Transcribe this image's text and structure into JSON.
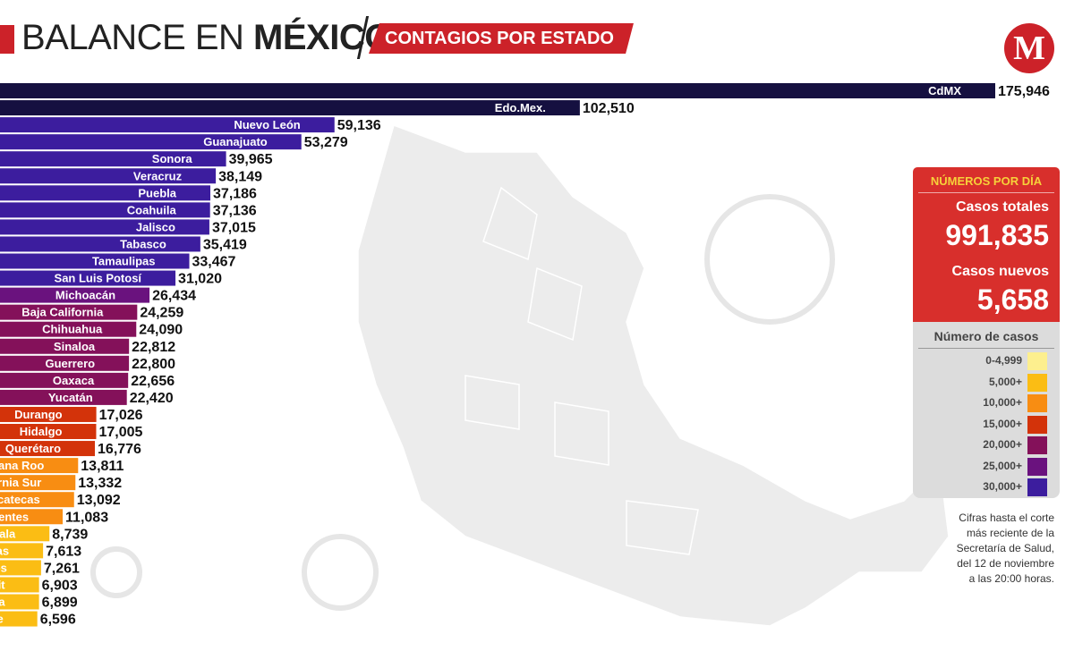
{
  "header": {
    "title_light": "BALANCE EN ",
    "title_bold": "MÉXICO",
    "subtitle": "CONTAGIOS POR ESTADO",
    "logo_letter": "M",
    "brand_color": "#cc2229"
  },
  "chart_data": {
    "type": "bar",
    "orientation": "horizontal",
    "categories": [
      "CdMX",
      "Edo.Mex.",
      "Nuevo León",
      "Guanajuato",
      "Sonora",
      "Veracruz",
      "Puebla",
      "Coahuila",
      "Jalisco",
      "Tabasco",
      "Tamaulipas",
      "San Luis Potosí",
      "Michoacán",
      "Baja California",
      "Chihuahua",
      "Sinaloa",
      "Guerrero",
      "Oaxaca",
      "Yucatán",
      "Durango",
      "Hidalgo",
      "Querétaro",
      "Quintana Roo",
      "Baja California Sur",
      "Zacatecas",
      "Aguascalientes",
      "Tlaxcala",
      "Chiapas",
      "Morelos",
      "Nayarit",
      "Colima",
      "Campeche"
    ],
    "values": [
      175946,
      102510,
      59136,
      53279,
      39965,
      38149,
      37186,
      37136,
      37015,
      35419,
      33467,
      31020,
      26434,
      24259,
      24090,
      22812,
      22800,
      22656,
      22420,
      17026,
      17005,
      16776,
      13811,
      13332,
      13092,
      11083,
      8739,
      7613,
      7261,
      6903,
      6899,
      6596
    ],
    "value_labels": [
      "175,946",
      "102,510",
      "59,136",
      "53,279",
      "39,965",
      "38,149",
      "37,186",
      "37,136",
      "37,015",
      "35,419",
      "33,467",
      "31,020",
      "26,434",
      "24,259",
      "24,090",
      "22,812",
      "22,800",
      "22,656",
      "22,420",
      "17,026",
      "17,005",
      "16,776",
      "13,811",
      "13,332",
      "13,092",
      "11,083",
      "8,739",
      "7,613",
      "7,261",
      "6,903",
      "6,899",
      "6,596"
    ],
    "bar_colors": [
      "#151040",
      "#151040",
      "#3c1d9e",
      "#3c1d9e",
      "#3c1d9e",
      "#3c1d9e",
      "#3c1d9e",
      "#3c1d9e",
      "#3c1d9e",
      "#3c1d9e",
      "#3c1d9e",
      "#3c1d9e",
      "#6a127e",
      "#84115a",
      "#84115a",
      "#84115a",
      "#84115a",
      "#84115a",
      "#84115a",
      "#d3330a",
      "#d3330a",
      "#d3330a",
      "#f88d12",
      "#f88d12",
      "#f88d12",
      "#f88d12",
      "#fbbd14",
      "#fbbd14",
      "#fbbd14",
      "#fbbd14",
      "#fbbd14",
      "#fbbd14"
    ],
    "xlim": [
      0,
      175946
    ]
  },
  "panel": {
    "header": "NÚMEROS POR DÍA",
    "total_label": "Casos totales",
    "total_value": "991,835",
    "new_label": "Casos nuevos",
    "new_value": "5,658"
  },
  "legend": {
    "title": "Número de casos",
    "items": [
      {
        "label": "0-4,999",
        "color": "#fdef8e"
      },
      {
        "label": "5,000+",
        "color": "#fbbd14"
      },
      {
        "label": "10,000+",
        "color": "#f88d12"
      },
      {
        "label": "15,000+",
        "color": "#d3330a"
      },
      {
        "label": "20,000+",
        "color": "#84115a"
      },
      {
        "label": "25,000+",
        "color": "#6a127e"
      },
      {
        "label": "30,000+",
        "color": "#3c1d9e"
      }
    ]
  },
  "note": [
    "Cifras hasta el corte",
    "más reciente de la",
    "Secretaría de Salud,",
    "del 12 de noviembre",
    "a las 20:00 horas."
  ]
}
